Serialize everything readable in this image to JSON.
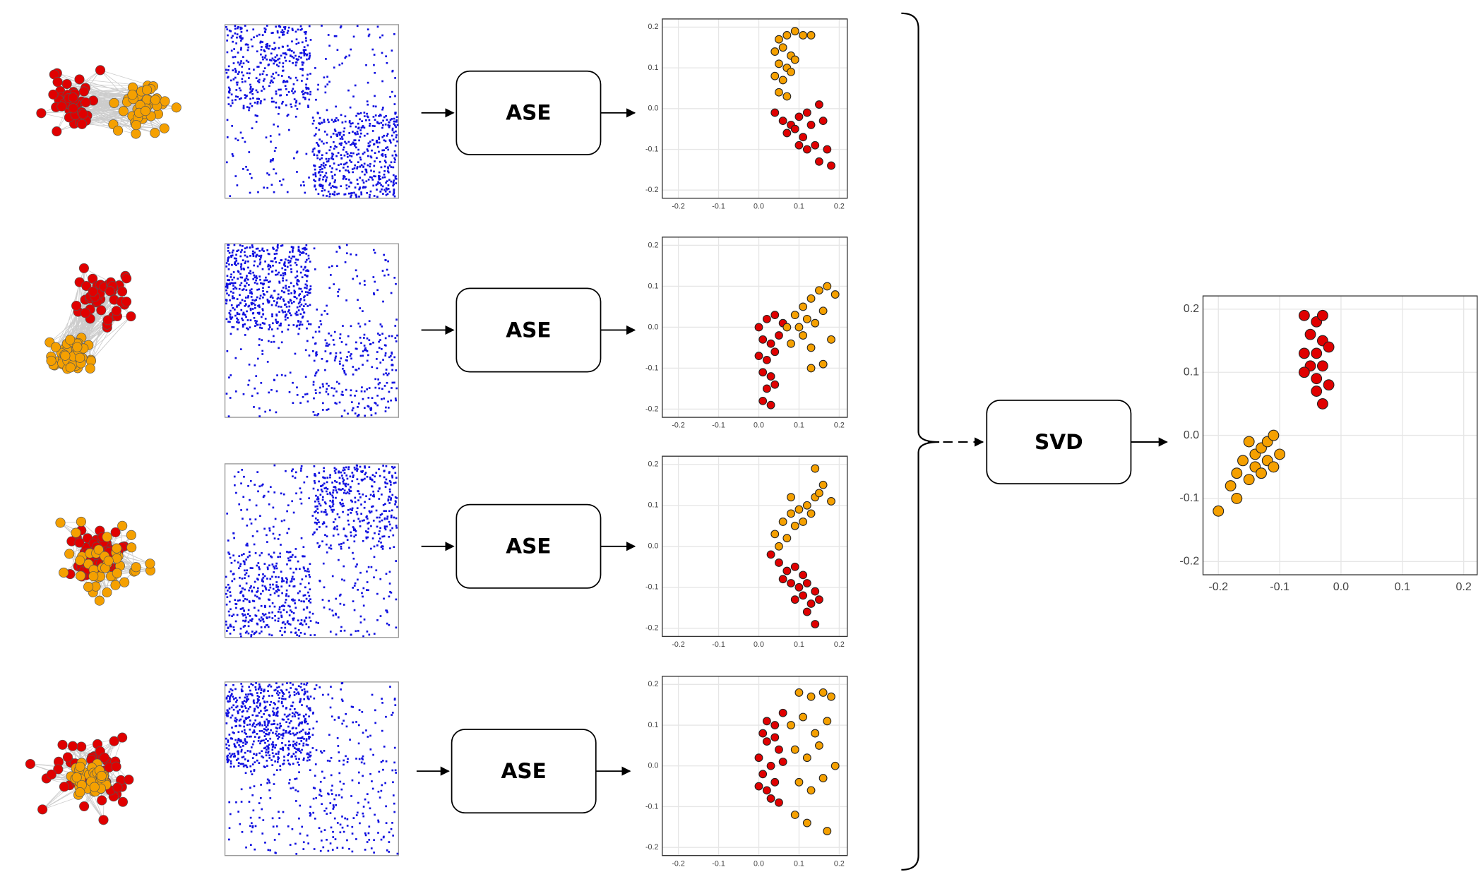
{
  "diagram": {
    "steps": [
      {
        "label": "ASE"
      },
      {
        "label": "ASE"
      },
      {
        "label": "ASE"
      },
      {
        "label": "ASE"
      }
    ],
    "combine": {
      "label": "SVD"
    }
  },
  "chart_data": [
    {
      "type": "scatter",
      "xlim": [
        -0.24,
        0.22
      ],
      "ylim": [
        -0.22,
        0.22
      ],
      "xticks": [
        -0.2,
        -0.1,
        {
          "value": 0,
          "label": "0.0"
        },
        0.1,
        0.2
      ],
      "yticks": [
        -0.2,
        -0.1,
        {
          "value": 0,
          "label": "0.0"
        },
        0.1,
        0.2
      ],
      "grid": true,
      "series": [
        {
          "color": "#f5a000",
          "x": [
            0.05,
            0.07,
            0.09,
            0.11,
            0.13,
            0.04,
            0.06,
            0.08,
            0.05,
            0.07,
            0.09,
            0.04,
            0.06,
            0.08,
            0.05,
            0.07
          ],
          "values": [
            0.17,
            0.18,
            0.19,
            0.18,
            0.18,
            0.14,
            0.15,
            0.13,
            0.11,
            0.1,
            0.12,
            0.08,
            0.07,
            0.09,
            0.04,
            0.03
          ]
        },
        {
          "color": "#e00000",
          "x": [
            0.04,
            0.06,
            0.08,
            0.1,
            0.12,
            0.15,
            0.07,
            0.09,
            0.11,
            0.13,
            0.16,
            0.1,
            0.12,
            0.14,
            0.17,
            0.15,
            0.18
          ],
          "values": [
            -0.01,
            -0.03,
            -0.04,
            -0.02,
            -0.01,
            0.01,
            -0.06,
            -0.05,
            -0.07,
            -0.04,
            -0.03,
            -0.09,
            -0.1,
            -0.09,
            -0.1,
            -0.13,
            -0.14
          ]
        }
      ]
    },
    {
      "type": "scatter",
      "xlim": [
        -0.24,
        0.22
      ],
      "ylim": [
        -0.22,
        0.22
      ],
      "xticks": [
        -0.2,
        -0.1,
        {
          "value": 0,
          "label": "0.0"
        },
        0.1,
        0.2
      ],
      "yticks": [
        -0.2,
        -0.1,
        {
          "value": 0,
          "label": "0.0"
        },
        0.1,
        0.2
      ],
      "grid": true,
      "series": [
        {
          "color": "#e00000",
          "x": [
            0.0,
            0.02,
            0.04,
            0.06,
            0.01,
            0.03,
            0.05,
            0.0,
            0.02,
            0.04,
            0.01,
            0.03,
            0.02,
            0.04,
            0.01,
            0.03
          ],
          "values": [
            0.0,
            0.02,
            0.03,
            0.01,
            -0.03,
            -0.04,
            -0.02,
            -0.07,
            -0.08,
            -0.06,
            -0.11,
            -0.12,
            -0.15,
            -0.14,
            -0.18,
            -0.19
          ]
        },
        {
          "color": "#f5a000",
          "x": [
            0.07,
            0.09,
            0.11,
            0.13,
            0.15,
            0.17,
            0.19,
            0.1,
            0.12,
            0.14,
            0.16,
            0.08,
            0.11,
            0.13,
            0.18,
            0.16,
            0.13
          ],
          "values": [
            0.0,
            0.03,
            0.05,
            0.07,
            0.09,
            0.1,
            0.08,
            0.0,
            0.02,
            0.01,
            0.04,
            -0.04,
            -0.02,
            -0.05,
            -0.03,
            -0.09,
            -0.1
          ]
        }
      ]
    },
    {
      "type": "scatter",
      "xlim": [
        -0.24,
        0.22
      ],
      "ylim": [
        -0.22,
        0.22
      ],
      "xticks": [
        -0.2,
        -0.1,
        {
          "value": 0,
          "label": "0.0"
        },
        0.1,
        0.2
      ],
      "yticks": [
        -0.2,
        -0.1,
        {
          "value": 0,
          "label": "0.0"
        },
        0.1,
        0.2
      ],
      "grid": true,
      "series": [
        {
          "color": "#f5a000",
          "x": [
            0.04,
            0.06,
            0.08,
            0.1,
            0.12,
            0.14,
            0.16,
            0.18,
            0.07,
            0.09,
            0.11,
            0.13,
            0.15,
            0.14,
            0.05,
            0.08
          ],
          "values": [
            0.03,
            0.06,
            0.08,
            0.09,
            0.1,
            0.12,
            0.15,
            0.11,
            0.02,
            0.05,
            0.06,
            0.08,
            0.13,
            0.19,
            0.0,
            0.12
          ]
        },
        {
          "color": "#e00000",
          "x": [
            0.03,
            0.05,
            0.07,
            0.09,
            0.11,
            0.06,
            0.08,
            0.1,
            0.12,
            0.14,
            0.09,
            0.11,
            0.13,
            0.15,
            0.12,
            0.14
          ],
          "values": [
            -0.02,
            -0.04,
            -0.06,
            -0.05,
            -0.07,
            -0.08,
            -0.09,
            -0.1,
            -0.09,
            -0.11,
            -0.13,
            -0.12,
            -0.14,
            -0.13,
            -0.16,
            -0.19
          ]
        }
      ]
    },
    {
      "type": "scatter",
      "xlim": [
        -0.24,
        0.22
      ],
      "ylim": [
        -0.22,
        0.22
      ],
      "xticks": [
        -0.2,
        -0.1,
        {
          "value": 0,
          "label": "0.0"
        },
        0.1,
        0.2
      ],
      "yticks": [
        -0.2,
        -0.1,
        {
          "value": 0,
          "label": "0.0"
        },
        0.1,
        0.2
      ],
      "grid": true,
      "series": [
        {
          "color": "#e00000",
          "x": [
            0.0,
            0.02,
            0.04,
            0.06,
            0.01,
            0.03,
            0.05,
            0.0,
            0.02,
            0.04,
            0.06,
            0.01,
            0.03,
            0.05,
            0.02,
            0.04
          ],
          "values": [
            0.02,
            0.06,
            0.1,
            0.13,
            -0.02,
            0.0,
            0.04,
            -0.05,
            -0.06,
            -0.04,
            0.01,
            0.08,
            -0.08,
            -0.09,
            0.11,
            0.07
          ]
        },
        {
          "color": "#f5a000",
          "x": [
            0.1,
            0.13,
            0.16,
            0.18,
            0.08,
            0.11,
            0.14,
            0.17,
            0.09,
            0.12,
            0.15,
            0.19,
            0.1,
            0.13,
            0.16,
            0.09,
            0.12,
            0.17
          ],
          "values": [
            0.18,
            0.17,
            0.18,
            0.17,
            0.1,
            0.12,
            0.08,
            0.11,
            0.04,
            0.02,
            0.05,
            0.0,
            -0.04,
            -0.06,
            -0.03,
            -0.12,
            -0.14,
            -0.16
          ]
        }
      ]
    },
    {
      "type": "scatter",
      "xlim": [
        -0.225,
        0.222
      ],
      "ylim": [
        -0.221,
        0.221
      ],
      "xticks": [
        -0.2,
        -0.1,
        {
          "value": 0,
          "label": "0.0"
        },
        0.1,
        0.2
      ],
      "yticks": [
        -0.2,
        -0.1,
        {
          "value": 0,
          "label": "0.0"
        },
        0.1,
        0.2
      ],
      "grid": true,
      "series": [
        {
          "color": "#e00000",
          "x": [
            -0.06,
            -0.04,
            -0.03,
            -0.05,
            -0.03,
            -0.06,
            -0.04,
            -0.02,
            -0.05,
            -0.03,
            -0.04,
            -0.06,
            -0.02,
            -0.04,
            -0.03
          ],
          "values": [
            0.19,
            0.18,
            0.19,
            0.16,
            0.15,
            0.13,
            0.13,
            0.14,
            0.11,
            0.11,
            0.09,
            0.1,
            0.08,
            0.07,
            0.05
          ]
        },
        {
          "color": "#f5a000",
          "x": [
            -0.2,
            -0.18,
            -0.17,
            -0.15,
            -0.16,
            -0.14,
            -0.13,
            -0.12,
            -0.11,
            -0.14,
            -0.12,
            -0.1,
            -0.15,
            -0.13,
            -0.11,
            -0.17
          ],
          "values": [
            -0.12,
            -0.08,
            -0.06,
            -0.07,
            -0.04,
            -0.03,
            -0.02,
            -0.01,
            0.0,
            -0.05,
            -0.04,
            -0.03,
            -0.01,
            -0.06,
            -0.05,
            -0.1
          ]
        }
      ]
    }
  ]
}
